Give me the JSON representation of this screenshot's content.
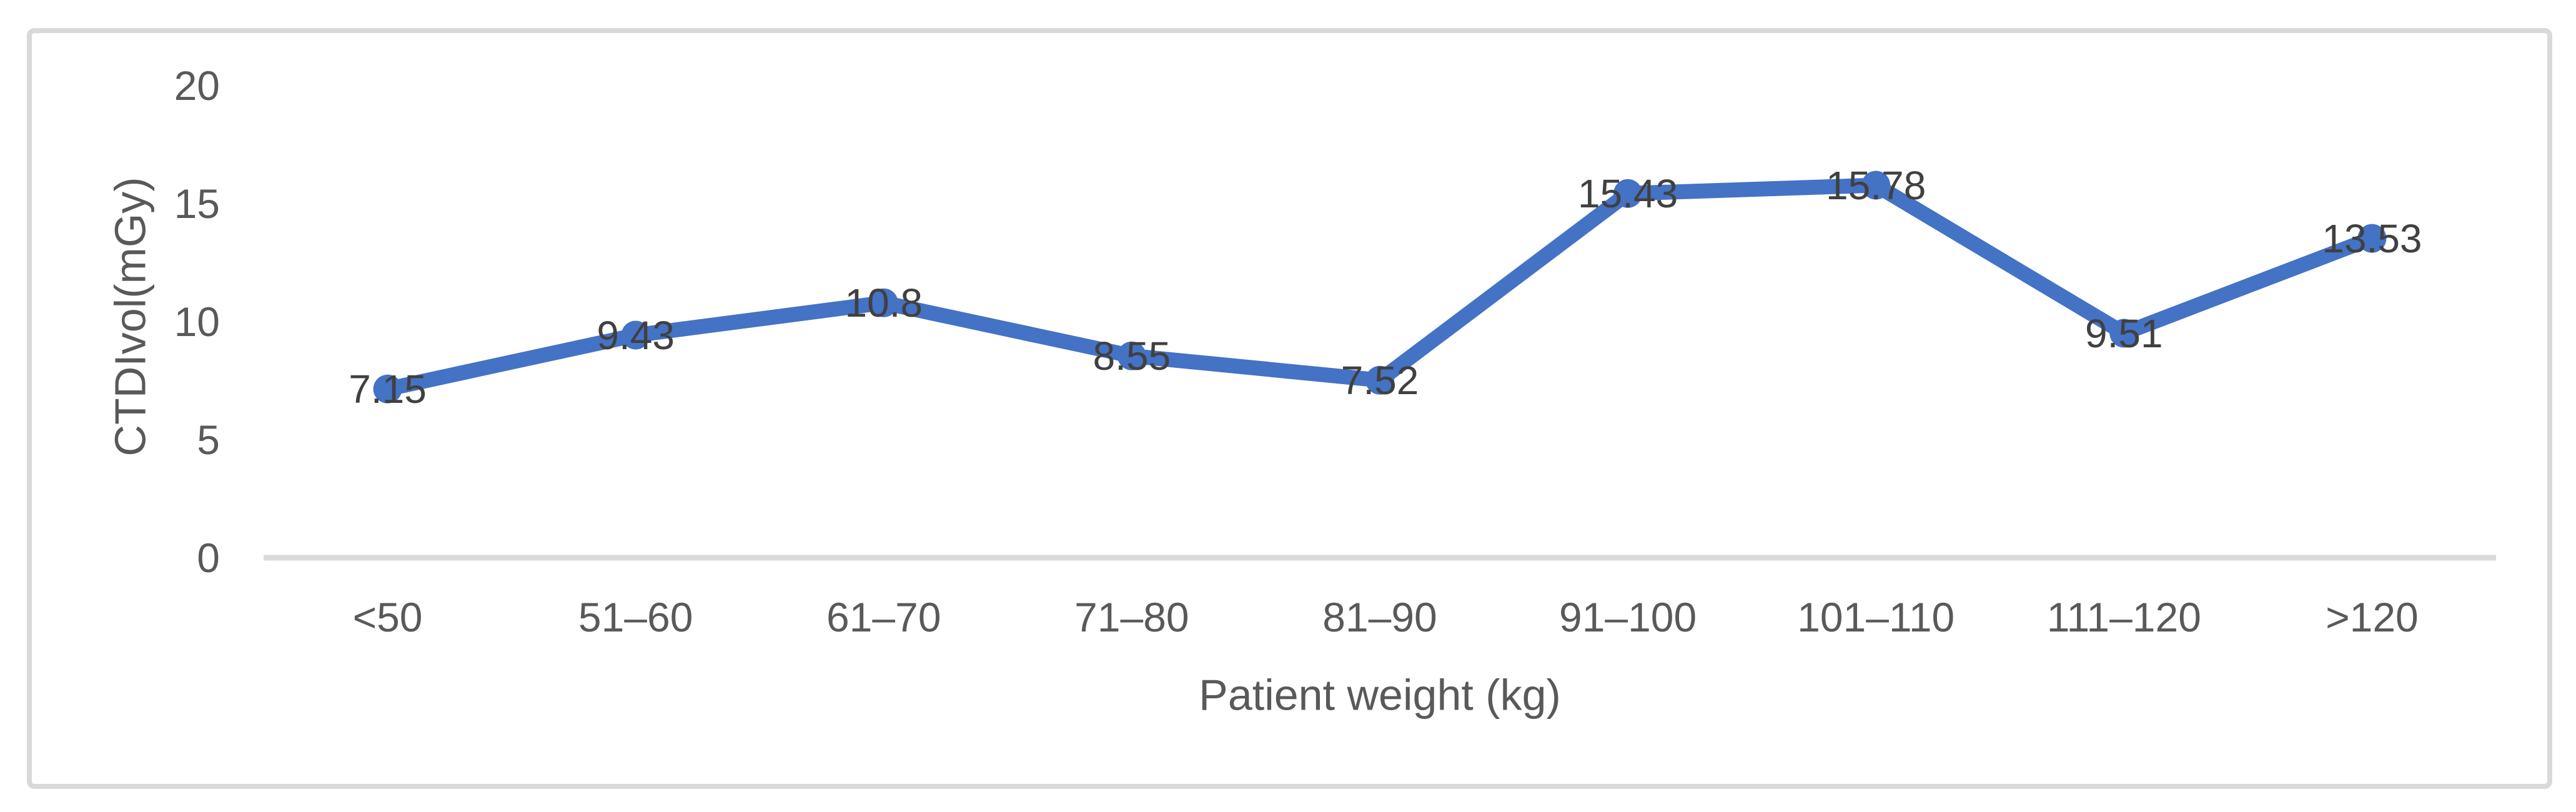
{
  "figure": {
    "background": "#ffffff",
    "frame_border_color": "#d9d9d9"
  },
  "chart_data": {
    "type": "line",
    "title": "",
    "xlabel": "Patient weight (kg)",
    "ylabel": "CTDIvol(mGy)",
    "categories": [
      "<50",
      "51–60",
      "61–70",
      "71–80",
      "81–90",
      "91–100",
      "101–110",
      "111–120",
      ">120"
    ],
    "series": [
      {
        "name": "CTDIvol",
        "values": [
          7.15,
          9.43,
          10.8,
          8.55,
          7.52,
          15.43,
          15.78,
          9.51,
          13.53
        ],
        "point_labels": [
          "7.15",
          "9.43",
          "10.8",
          "8.55",
          "7.52",
          "15.43",
          "15.78",
          "9.51",
          "13.53"
        ],
        "color": "#4472C4"
      }
    ],
    "ylim": [
      0,
      20
    ],
    "yticks": [
      0,
      5,
      10,
      15,
      20
    ],
    "grid": false,
    "legend": false,
    "marker": "circle",
    "data_label_position": "center",
    "data_label_color": "#404040",
    "axis_text_color": "#595959",
    "axis_line_color": "#d9d9d9"
  }
}
